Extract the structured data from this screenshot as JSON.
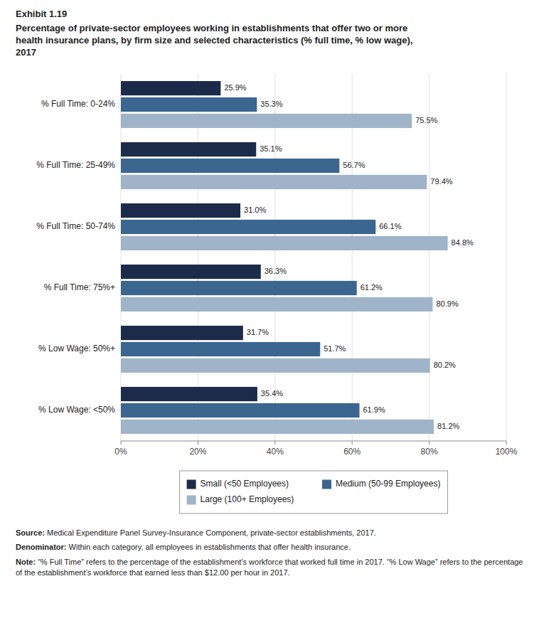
{
  "chart_data": {
    "type": "bar",
    "orientation": "horizontal",
    "title": "Exhibit 1.19",
    "subtitle": "Percentage of private-sector employees working in establishments that offer two or more\nhealth insurance plans, by firm size and selected characteristics (% full time, % low wage),\n2017",
    "categories": [
      "% Full Time: 0-24%",
      "% Full Time: 25-49%",
      "% Full Time: 50-74%",
      "% Full Time: 75%+",
      "% Low Wage: 50%+",
      "% Low Wage: <50%"
    ],
    "series": [
      {
        "name": "Small (<50 Employees)",
        "color": "#1c2b4a",
        "values": [
          25.9,
          35.1,
          31.0,
          36.3,
          31.7,
          35.4
        ],
        "value_labels": [
          "25.9%",
          "35.1%",
          "31.0%",
          "36.3%",
          "31.7%",
          "35.4%"
        ]
      },
      {
        "name": "Medium (50-99 Employees)",
        "color": "#3a6690",
        "values": [
          35.3,
          56.7,
          66.1,
          61.2,
          51.7,
          61.9
        ],
        "value_labels": [
          "35.3%",
          "56.7%",
          "66.1%",
          "61.2%",
          "51.7%",
          "61.9%"
        ]
      },
      {
        "name": "Large (100+ Employees)",
        "color": "#9fb4c8",
        "values": [
          75.5,
          79.4,
          84.8,
          80.9,
          80.2,
          81.2
        ],
        "value_labels": [
          "75.5%",
          "79.4%",
          "84.8%",
          "80.9%",
          "80.2%",
          "81.2%"
        ]
      }
    ],
    "xlim": [
      0,
      100
    ],
    "xticks": [
      {
        "value": 0,
        "label": "0%"
      },
      {
        "value": 20,
        "label": "20%"
      },
      {
        "value": 40,
        "label": "40%"
      },
      {
        "value": 60,
        "label": "60%"
      },
      {
        "value": 80,
        "label": "80%"
      },
      {
        "value": 100,
        "label": "100%"
      }
    ],
    "grid": true,
    "data_labels": true,
    "legend": "bottom",
    "annotations": [
      {
        "label": "Source:",
        "text": " Medical Expenditure Panel Survey-Insurance Component, private-sector establishments, 2017."
      },
      {
        "label": "Denominator:",
        "text": " Within each category, all employees in establishments that offer health insurance."
      },
      {
        "label": "Note:",
        "text": " “% Full Time” refers to the percentage of the establishment’s workforce that worked full time in 2017. “% Low Wage” refers to the percentage of the establishment’s workforce that earned less than $12.00 per hour in 2017."
      }
    ]
  }
}
